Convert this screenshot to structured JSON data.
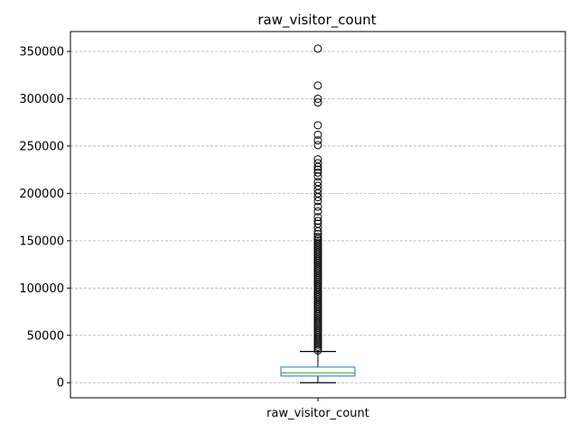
{
  "chart_data": {
    "type": "box",
    "title": "raw_visitor_count",
    "categories": [
      "raw_visitor_count"
    ],
    "xlabel": "",
    "ylabel": "",
    "ylim": [
      -16000,
      371000
    ],
    "yticks": [
      0,
      50000,
      100000,
      150000,
      200000,
      250000,
      300000,
      350000
    ],
    "ytick_labels": [
      "0",
      "50000",
      "100000",
      "150000",
      "200000",
      "250000",
      "300000",
      "350000"
    ],
    "grid": "y-dashed",
    "box": {
      "min_whisker": 0,
      "q1": 7000,
      "median": 10500,
      "q3": 16500,
      "max_whisker": 33000
    },
    "outliers": [
      353000,
      314000,
      300000,
      296000,
      272000,
      262000,
      256000,
      251000,
      236000,
      232000,
      228000,
      225000,
      222000,
      218000,
      212000,
      208000,
      204000,
      200000,
      196000,
      192000,
      186000,
      181000,
      175000,
      171000,
      168000,
      164000,
      160000,
      157000,
      154000,
      152000,
      150000,
      148000,
      146000,
      144000,
      142000,
      140000,
      138000,
      136000,
      134000,
      132000,
      130000,
      128000,
      126000,
      124000,
      122000,
      120000,
      118000,
      116000,
      114000,
      112000,
      110000,
      108000,
      106000,
      104000,
      102000,
      100000,
      98000,
      96000,
      94000,
      92000,
      90000,
      88000,
      86000,
      84000,
      82000,
      80000,
      78000,
      76000,
      74000,
      72000,
      70000,
      68000,
      66000,
      64000,
      62000,
      60000,
      58000,
      56000,
      54000,
      52000,
      50000,
      48000,
      46000,
      44000,
      42000,
      40000,
      38000,
      36000,
      34000
    ],
    "colors": {
      "box": "#1f77b4",
      "median": "#2ca02c",
      "whisker": "#000000",
      "outlier": "#000000",
      "grid": "#b0b0b0"
    }
  }
}
